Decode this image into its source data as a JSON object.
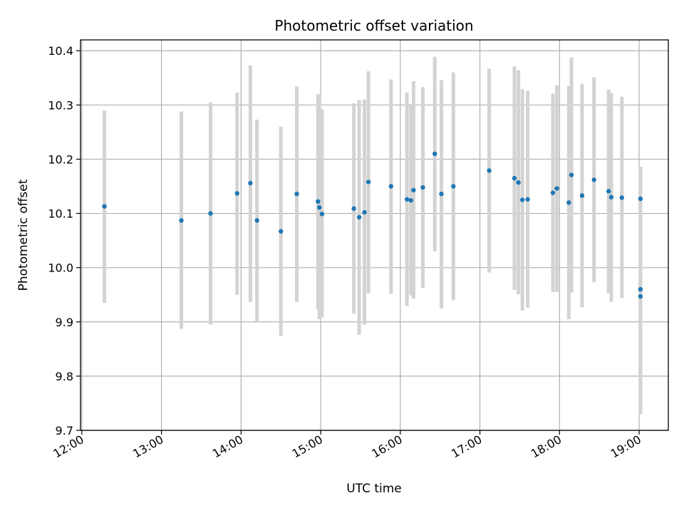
{
  "chart_data": {
    "type": "scatter",
    "title": "Photometric offset variation",
    "xlabel": "UTC time",
    "ylabel": "Photometric offset",
    "xlim": [
      "11:59",
      "19:22"
    ],
    "ylim": [
      9.7,
      10.42
    ],
    "x_ticks": [
      "12:00",
      "13:00",
      "14:00",
      "15:00",
      "16:00",
      "17:00",
      "18:00",
      "19:00"
    ],
    "y_ticks": [
      9.7,
      9.8,
      9.9,
      10.0,
      10.1,
      10.2,
      10.3,
      10.4
    ],
    "grid": true,
    "point_color": "#1f77b4",
    "errorbar_color": "#d3d3d3",
    "points": [
      {
        "x": "12:17",
        "y": 10.113,
        "lo": 9.935,
        "hi": 10.29
      },
      {
        "x": "13:15",
        "y": 10.087,
        "lo": 9.887,
        "hi": 10.288
      },
      {
        "x": "13:37",
        "y": 10.1,
        "lo": 9.895,
        "hi": 10.305
      },
      {
        "x": "13:57",
        "y": 10.137,
        "lo": 9.95,
        "hi": 10.323
      },
      {
        "x": "14:07",
        "y": 10.156,
        "lo": 9.937,
        "hi": 10.373
      },
      {
        "x": "14:12",
        "y": 10.087,
        "lo": 9.9,
        "hi": 10.273
      },
      {
        "x": "14:30",
        "y": 10.067,
        "lo": 9.874,
        "hi": 10.26
      },
      {
        "x": "14:42",
        "y": 10.136,
        "lo": 9.937,
        "hi": 10.334
      },
      {
        "x": "14:58",
        "y": 10.122,
        "lo": 9.923,
        "hi": 10.32
      },
      {
        "x": "14:59",
        "y": 10.111,
        "lo": 9.905,
        "hi": 10.318
      },
      {
        "x": "15:01",
        "y": 10.099,
        "lo": 9.908,
        "hi": 10.292
      },
      {
        "x": "15:25",
        "y": 10.109,
        "lo": 9.915,
        "hi": 10.303
      },
      {
        "x": "15:29",
        "y": 10.093,
        "lo": 9.876,
        "hi": 10.309
      },
      {
        "x": "15:33",
        "y": 10.102,
        "lo": 9.895,
        "hi": 10.31
      },
      {
        "x": "15:36",
        "y": 10.158,
        "lo": 9.953,
        "hi": 10.362
      },
      {
        "x": "15:53",
        "y": 10.15,
        "lo": 9.952,
        "hi": 10.347
      },
      {
        "x": "16:05",
        "y": 10.126,
        "lo": 9.929,
        "hi": 10.323
      },
      {
        "x": "16:08",
        "y": 10.124,
        "lo": 9.949,
        "hi": 10.299
      },
      {
        "x": "16:10",
        "y": 10.143,
        "lo": 9.943,
        "hi": 10.344
      },
      {
        "x": "16:17",
        "y": 10.148,
        "lo": 9.963,
        "hi": 10.333
      },
      {
        "x": "16:26",
        "y": 10.21,
        "lo": 10.03,
        "hi": 10.389
      },
      {
        "x": "16:31",
        "y": 10.136,
        "lo": 9.925,
        "hi": 10.346
      },
      {
        "x": "16:40",
        "y": 10.15,
        "lo": 9.94,
        "hi": 10.36
      },
      {
        "x": "17:07",
        "y": 10.179,
        "lo": 9.991,
        "hi": 10.367
      },
      {
        "x": "17:26",
        "y": 10.165,
        "lo": 9.959,
        "hi": 10.371
      },
      {
        "x": "17:29",
        "y": 10.157,
        "lo": 9.951,
        "hi": 10.364
      },
      {
        "x": "17:32",
        "y": 10.125,
        "lo": 9.921,
        "hi": 10.329
      },
      {
        "x": "17:36",
        "y": 10.126,
        "lo": 9.926,
        "hi": 10.326
      },
      {
        "x": "17:55",
        "y": 10.138,
        "lo": 9.955,
        "hi": 10.321
      },
      {
        "x": "17:58",
        "y": 10.146,
        "lo": 9.955,
        "hi": 10.336
      },
      {
        "x": "18:07",
        "y": 10.12,
        "lo": 9.905,
        "hi": 10.335
      },
      {
        "x": "18:09",
        "y": 10.171,
        "lo": 9.954,
        "hi": 10.388
      },
      {
        "x": "18:17",
        "y": 10.133,
        "lo": 9.927,
        "hi": 10.339
      },
      {
        "x": "18:26",
        "y": 10.162,
        "lo": 9.973,
        "hi": 10.351
      },
      {
        "x": "18:37",
        "y": 10.141,
        "lo": 9.953,
        "hi": 10.328
      },
      {
        "x": "18:39",
        "y": 10.13,
        "lo": 9.937,
        "hi": 10.322
      },
      {
        "x": "18:47",
        "y": 10.129,
        "lo": 9.944,
        "hi": 10.315
      },
      {
        "x": "19:01",
        "y": 10.127,
        "lo": 9.73,
        "hi": 10.186
      },
      {
        "x": "19:01",
        "y": 9.96,
        "lo": 9.73,
        "hi": 10.186
      },
      {
        "x": "19:01",
        "y": 9.947,
        "lo": 9.73,
        "hi": 10.186
      }
    ]
  }
}
